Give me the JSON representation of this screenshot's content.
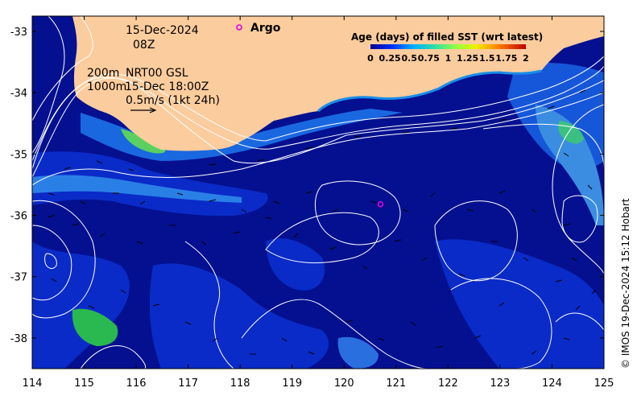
{
  "map": {
    "lon_ticks": [
      "114",
      "115",
      "116",
      "117",
      "118",
      "119",
      "120",
      "121",
      "122",
      "123",
      "124",
      "125"
    ],
    "lat_ticks": [
      "-33",
      "-34",
      "-35",
      "-36",
      "-37",
      "-38"
    ],
    "annotations": {
      "date": "15-Dec-2024",
      "hour": "08Z",
      "depth_200": "200m",
      "depth_1000": "1000m",
      "source": "NRT00 GSL",
      "source_time": "15-Dec 18:00Z",
      "vector_scale": "0.5m/s (1kt 24h)"
    },
    "legend": {
      "argo_label": "Argo"
    },
    "argo_float": {
      "lon": 120.7,
      "lat": -35.82
    },
    "colorbar": {
      "title": "Age (days) of filled SST (wrt latest)",
      "ticks": [
        "0",
        "0.25",
        "0.5",
        "0.75",
        "1",
        "1.25",
        "1.5",
        "1.75",
        "2"
      ]
    },
    "credit": "© IMOS 19-Dec-2024 15:12 Hobart",
    "colors": {
      "land": "#fbcc9d",
      "ocean_deep": "#04108f",
      "ocean_mid": "#0a2bc7",
      "argo": "#e000e0"
    }
  }
}
